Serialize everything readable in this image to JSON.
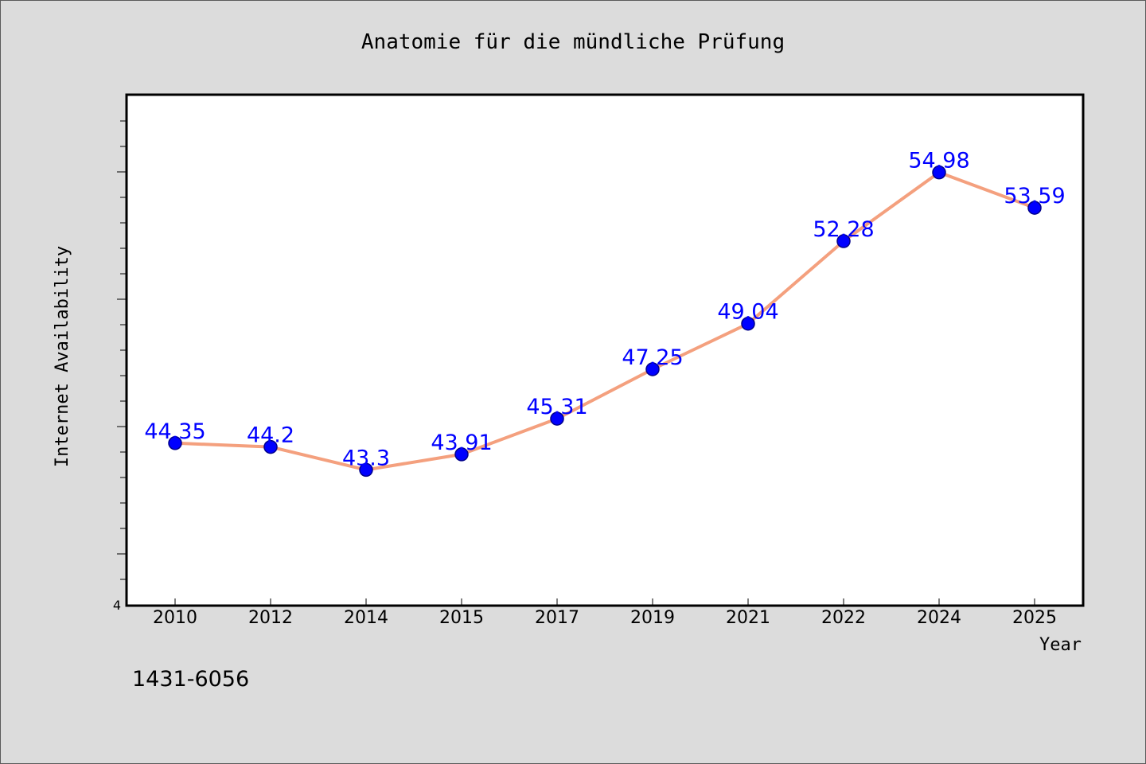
{
  "chart_data": {
    "type": "line",
    "title": "Anatomie für die mündliche Prüfung",
    "xlabel": "Year",
    "ylabel": "Internet Availability",
    "categories": [
      "2010",
      "2012",
      "2014",
      "2015",
      "2017",
      "2019",
      "2021",
      "2022",
      "2024",
      "2025"
    ],
    "values": [
      44.35,
      44.2,
      43.3,
      43.91,
      45.31,
      47.25,
      49.04,
      52.28,
      54.98,
      53.59
    ],
    "data_labels": [
      "44.35",
      "44.2",
      "43.3",
      "43.91",
      "45.31",
      "47.25",
      "49.04",
      "52.28",
      "54.98",
      "53.59"
    ],
    "y_tick_labels": [
      "4"
    ],
    "ylim": [
      38,
      58
    ],
    "grid": false,
    "legend": "none",
    "colors": {
      "line": "#f4a07e",
      "marker": "#0000ff",
      "marker_edge": "#00008b",
      "data_label": "#0000ff",
      "plot_bg": "#ffffff",
      "page_bg": "#dcdcdc"
    }
  },
  "footer_code": "1431-6056"
}
